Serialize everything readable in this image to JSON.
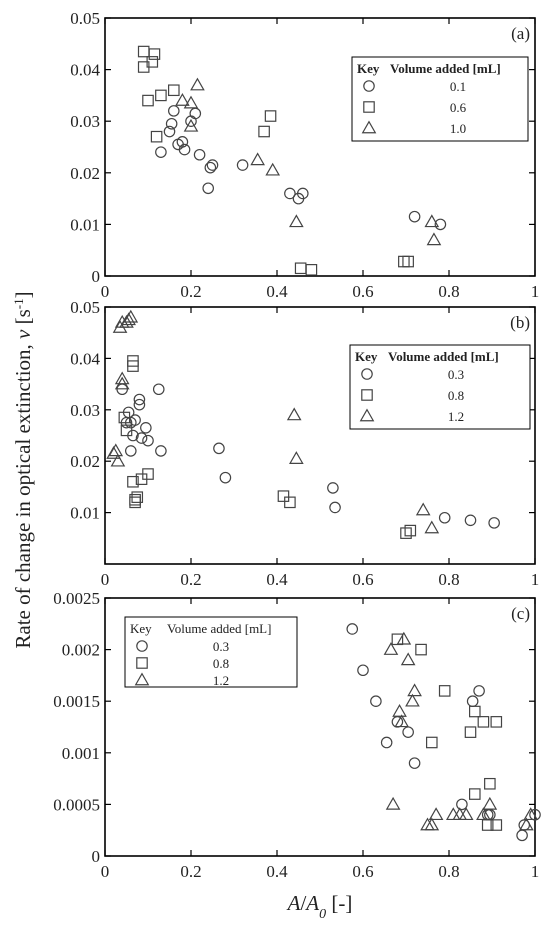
{
  "figure": {
    "ylabel_prefix": "Rate of change in optical extinction, ",
    "ylabel_var": "v",
    "ylabel_unit_open": " [s",
    "ylabel_unit_sup": "-1",
    "ylabel_unit_close": "]",
    "xlabel_var": "A",
    "xlabel_sep": "/",
    "xlabel_var2": "A",
    "xlabel_sub": "0",
    "xlabel_unit": " [-]"
  },
  "chart_data": [
    {
      "type": "scatter",
      "panel_label": "(a)",
      "xlim": [
        0,
        1
      ],
      "ylim": [
        0,
        0.05
      ],
      "x_ticks": [
        0,
        0.2,
        0.4,
        0.6,
        0.8,
        1
      ],
      "x_tick_labels": [
        "0",
        "0.2",
        "0.4",
        "0.6",
        "0.8",
        "1"
      ],
      "y_ticks": [
        0,
        0.01,
        0.02,
        0.03,
        0.04,
        0.05
      ],
      "y_tick_labels": [
        "0",
        "0.01",
        "0.02",
        "0.03",
        "0.04",
        "0.05"
      ],
      "legend_title_key": "Key",
      "legend_title_col": "Volume added [mL]",
      "legend_title_bold": true,
      "legend_position": "top-right",
      "series": [
        {
          "name": "0.1",
          "marker": "circle",
          "points": [
            [
              0.13,
              0.024
            ],
            [
              0.15,
              0.028
            ],
            [
              0.155,
              0.0295
            ],
            [
              0.16,
              0.032
            ],
            [
              0.17,
              0.0255
            ],
            [
              0.18,
              0.026
            ],
            [
              0.185,
              0.0245
            ],
            [
              0.2,
              0.03
            ],
            [
              0.21,
              0.0315
            ],
            [
              0.22,
              0.0235
            ],
            [
              0.24,
              0.017
            ],
            [
              0.245,
              0.021
            ],
            [
              0.25,
              0.0215
            ],
            [
              0.32,
              0.0215
            ],
            [
              0.43,
              0.016
            ],
            [
              0.45,
              0.015
            ],
            [
              0.46,
              0.016
            ],
            [
              0.72,
              0.0115
            ],
            [
              0.78,
              0.01
            ]
          ]
        },
        {
          "name": "0.6",
          "marker": "square",
          "points": [
            [
              0.09,
              0.0435
            ],
            [
              0.09,
              0.0405
            ],
            [
              0.1,
              0.034
            ],
            [
              0.11,
              0.0415
            ],
            [
              0.115,
              0.043
            ],
            [
              0.12,
              0.027
            ],
            [
              0.13,
              0.035
            ],
            [
              0.16,
              0.036
            ],
            [
              0.37,
              0.028
            ],
            [
              0.385,
              0.031
            ],
            [
              0.455,
              0.0015
            ],
            [
              0.48,
              0.0012
            ],
            [
              0.695,
              0.0028
            ],
            [
              0.705,
              0.0028
            ]
          ]
        },
        {
          "name": "1.0",
          "marker": "triangle",
          "points": [
            [
              0.18,
              0.034
            ],
            [
              0.2,
              0.0335
            ],
            [
              0.2,
              0.029
            ],
            [
              0.215,
              0.037
            ],
            [
              0.355,
              0.0225
            ],
            [
              0.39,
              0.0205
            ],
            [
              0.445,
              0.0105
            ],
            [
              0.76,
              0.0105
            ],
            [
              0.765,
              0.007
            ]
          ]
        }
      ]
    },
    {
      "type": "scatter",
      "panel_label": "(b)",
      "xlim": [
        0,
        1
      ],
      "ylim": [
        0,
        0.05
      ],
      "x_ticks": [
        0,
        0.2,
        0.4,
        0.6,
        0.8,
        1
      ],
      "x_tick_labels": [
        "0",
        "0.2",
        "0.4",
        "0.6",
        "0.8",
        "1"
      ],
      "y_ticks": [
        0.01,
        0.02,
        0.03,
        0.04,
        0.05
      ],
      "y_tick_labels": [
        "0.01",
        "0.02",
        "0.03",
        "0.04",
        "0.05"
      ],
      "legend_title_key": "Key",
      "legend_title_col": "Volume added [mL]",
      "legend_title_bold": true,
      "legend_position": "top-right",
      "series": [
        {
          "name": "0.3",
          "marker": "circle",
          "points": [
            [
              0.04,
              0.034
            ],
            [
              0.05,
              0.0275
            ],
            [
              0.055,
              0.0295
            ],
            [
              0.06,
              0.0275
            ],
            [
              0.06,
              0.022
            ],
            [
              0.065,
              0.025
            ],
            [
              0.07,
              0.028
            ],
            [
              0.08,
              0.031
            ],
            [
              0.08,
              0.032
            ],
            [
              0.085,
              0.0245
            ],
            [
              0.095,
              0.0265
            ],
            [
              0.1,
              0.024
            ],
            [
              0.125,
              0.034
            ],
            [
              0.13,
              0.022
            ],
            [
              0.265,
              0.0225
            ],
            [
              0.28,
              0.0168
            ],
            [
              0.53,
              0.0148
            ],
            [
              0.535,
              0.011
            ],
            [
              0.79,
              0.009
            ],
            [
              0.85,
              0.0085
            ],
            [
              0.905,
              0.008
            ]
          ]
        },
        {
          "name": "0.8",
          "marker": "square",
          "points": [
            [
              0.045,
              0.0285
            ],
            [
              0.05,
              0.026
            ],
            [
              0.065,
              0.0385
            ],
            [
              0.065,
              0.0395
            ],
            [
              0.065,
              0.016
            ],
            [
              0.07,
              0.0125
            ],
            [
              0.07,
              0.012
            ],
            [
              0.075,
              0.013
            ],
            [
              0.085,
              0.0165
            ],
            [
              0.1,
              0.0175
            ],
            [
              0.415,
              0.0132
            ],
            [
              0.43,
              0.012
            ],
            [
              0.7,
              0.006
            ],
            [
              0.71,
              0.0065
            ]
          ]
        },
        {
          "name": "1.2",
          "marker": "triangle",
          "points": [
            [
              0.02,
              0.0215
            ],
            [
              0.025,
              0.022
            ],
            [
              0.03,
              0.02
            ],
            [
              0.035,
              0.046
            ],
            [
              0.04,
              0.047
            ],
            [
              0.04,
              0.036
            ],
            [
              0.05,
              0.047
            ],
            [
              0.055,
              0.0475
            ],
            [
              0.06,
              0.048
            ],
            [
              0.04,
              0.035
            ],
            [
              0.44,
              0.029
            ],
            [
              0.445,
              0.0205
            ],
            [
              0.74,
              0.0105
            ],
            [
              0.76,
              0.007
            ]
          ]
        }
      ]
    },
    {
      "type": "scatter",
      "panel_label": "(c)",
      "xlim": [
        0,
        1
      ],
      "ylim": [
        0,
        0.0025
      ],
      "x_ticks": [
        0,
        0.2,
        0.4,
        0.6,
        0.8,
        1
      ],
      "x_tick_labels": [
        "0",
        "0.2",
        "0.4",
        "0.6",
        "0.8",
        "1"
      ],
      "y_ticks": [
        0,
        0.0005,
        0.001,
        0.0015,
        0.002,
        0.0025
      ],
      "y_tick_labels": [
        "0",
        "0.0005",
        "0.001",
        "0.0015",
        "0.002",
        "0.0025"
      ],
      "legend_title_key": "Key",
      "legend_title_col": "Volume added [mL]",
      "legend_title_bold": false,
      "legend_position": "top-left",
      "series": [
        {
          "name": "0.3",
          "marker": "circle",
          "points": [
            [
              0.575,
              0.0022
            ],
            [
              0.6,
              0.0018
            ],
            [
              0.63,
              0.0015
            ],
            [
              0.655,
              0.0011
            ],
            [
              0.68,
              0.0013
            ],
            [
              0.705,
              0.0012
            ],
            [
              0.72,
              0.0009
            ],
            [
              0.83,
              0.0005
            ],
            [
              0.855,
              0.0015
            ],
            [
              0.87,
              0.0016
            ],
            [
              0.89,
              0.0004
            ],
            [
              0.895,
              0.0004
            ],
            [
              0.97,
              0.0002
            ],
            [
              0.975,
              0.0003
            ],
            [
              1.0,
              0.0004
            ]
          ]
        },
        {
          "name": "0.8",
          "marker": "square",
          "points": [
            [
              0.68,
              0.0021
            ],
            [
              0.735,
              0.002
            ],
            [
              0.76,
              0.0011
            ],
            [
              0.79,
              0.0016
            ],
            [
              0.85,
              0.0012
            ],
            [
              0.86,
              0.0014
            ],
            [
              0.86,
              0.0006
            ],
            [
              0.88,
              0.0013
            ],
            [
              0.895,
              0.0007
            ],
            [
              0.89,
              0.0003
            ],
            [
              0.91,
              0.0013
            ],
            [
              0.91,
              0.0003
            ]
          ]
        },
        {
          "name": "1.2",
          "marker": "triangle",
          "points": [
            [
              0.665,
              0.002
            ],
            [
              0.67,
              0.0005
            ],
            [
              0.685,
              0.0014
            ],
            [
              0.69,
              0.0013
            ],
            [
              0.695,
              0.0021
            ],
            [
              0.705,
              0.0019
            ],
            [
              0.715,
              0.0015
            ],
            [
              0.72,
              0.0016
            ],
            [
              0.75,
              0.0003
            ],
            [
              0.76,
              0.0003
            ],
            [
              0.77,
              0.0004
            ],
            [
              0.81,
              0.0004
            ],
            [
              0.825,
              0.0004
            ],
            [
              0.84,
              0.0004
            ],
            [
              0.88,
              0.0004
            ],
            [
              0.895,
              0.0005
            ],
            [
              0.98,
              0.0003
            ],
            [
              0.99,
              0.0004
            ]
          ]
        }
      ]
    }
  ]
}
